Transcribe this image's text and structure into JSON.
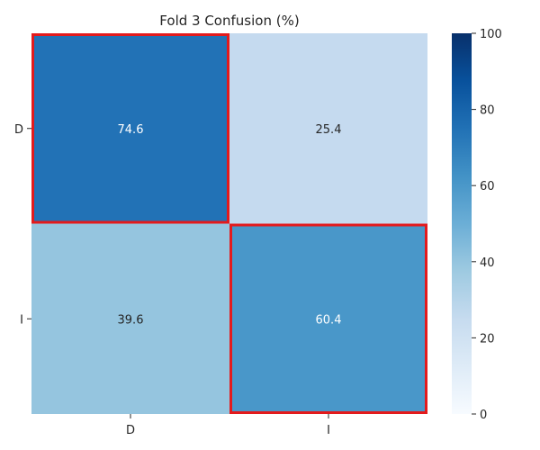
{
  "chart_data": {
    "type": "heatmap",
    "title": "Fold 3 Confusion (%)",
    "xlabel": "",
    "ylabel": "",
    "x_categories": [
      "D",
      "I"
    ],
    "y_categories": [
      "D",
      "I"
    ],
    "values": [
      [
        74.6,
        25.4
      ],
      [
        39.6,
        60.4
      ]
    ],
    "value_range": [
      0,
      100
    ],
    "colorbar_ticks": [
      0,
      20,
      40,
      60,
      80,
      100
    ],
    "colormap": "Blues",
    "highlight_color": "#e31a1c",
    "highlighted_cells": [
      [
        0,
        0
      ],
      [
        1,
        1
      ]
    ],
    "grid": false,
    "legend": "colorbar-right"
  }
}
